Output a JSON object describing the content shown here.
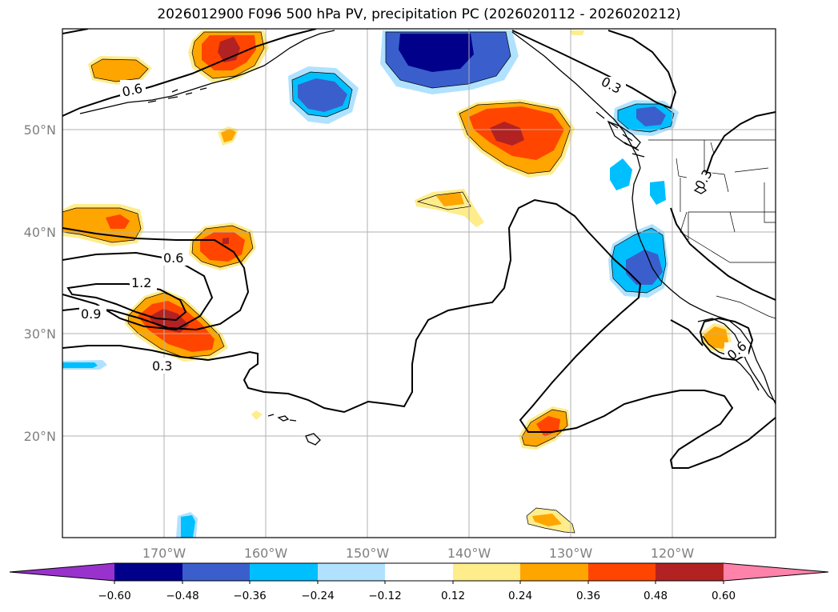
{
  "title": "2026012900 F096 500 hPa PV, precipitation PC (2026020112 - 2026020212)",
  "map": {
    "lon_ticks": [
      "170°W",
      "160°W",
      "150°W",
      "140°W",
      "130°W",
      "120°W"
    ],
    "lat_ticks": [
      "50°N",
      "40°N",
      "30°N",
      "20°N"
    ]
  },
  "contour_labels": [
    "0.6",
    "0.3",
    "0.6",
    "1.2",
    "0.9",
    "0.3",
    "0.3",
    "0.6"
  ],
  "colorbar": {
    "ticks": [
      "−0.60",
      "−0.48",
      "−0.36",
      "−0.24",
      "−0.12",
      "0.12",
      "0.24",
      "0.36",
      "0.48",
      "0.60"
    ],
    "colors": [
      "#9932cc",
      "#00008b",
      "#3a5fcd",
      "#00bfff",
      "#b0e2ff",
      "#ffffff",
      "#ffec8b",
      "#ffa500",
      "#ff4500",
      "#b22222",
      "#ff82ab"
    ]
  }
}
